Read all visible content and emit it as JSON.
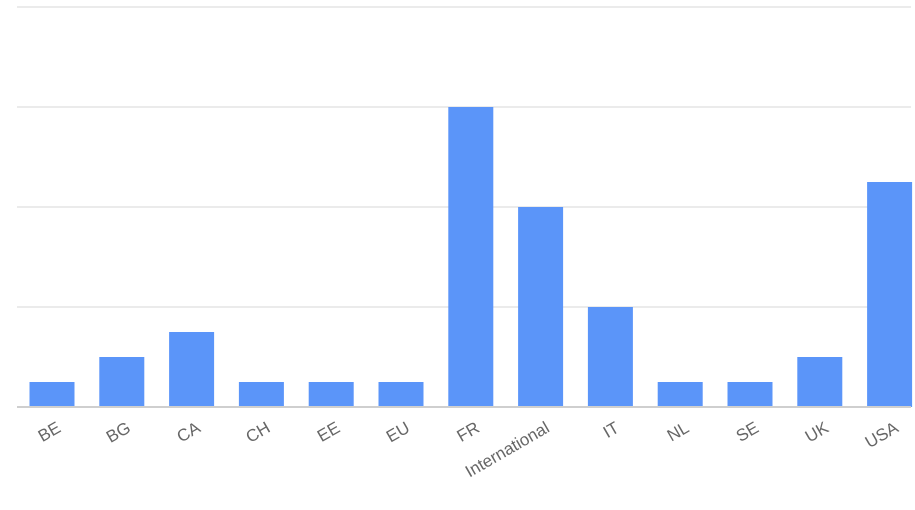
{
  "chart_data": {
    "type": "bar",
    "title": "",
    "xlabel": "",
    "ylabel": "",
    "categories": [
      "BE",
      "BG",
      "CA",
      "CH",
      "EE",
      "EU",
      "FR",
      "International",
      "IT",
      "NL",
      "SE",
      "UK",
      "USA"
    ],
    "values": [
      1,
      2,
      3,
      1,
      1,
      1,
      12,
      8,
      4,
      1,
      1,
      2,
      9
    ],
    "ylim": [
      0,
      16
    ],
    "grid": true,
    "y_tick_labels_visible": false,
    "legend": "none",
    "colors": {
      "bar": "#5b95f9",
      "grid": "#ebebeb",
      "baseline": "#cfcfcf",
      "tick_label": "#666666"
    }
  }
}
